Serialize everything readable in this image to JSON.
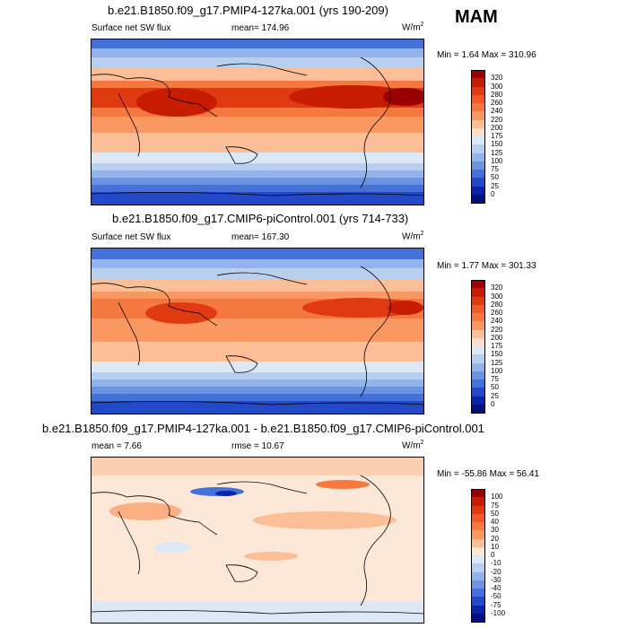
{
  "season": "MAM",
  "panels": [
    {
      "title": "b.e21.B1850.f09_g17.PMIP4-127ka.001 (yrs 190-209)",
      "left_label": "Surface net SW flux",
      "center_label": "mean= 174.96",
      "units_base": "W/m",
      "units_exp": "2",
      "minmax": "Min =  1.64 Max = 310.96",
      "colorbar_labels": [
        "320",
        "300",
        "280",
        "260",
        "240",
        "220",
        "200",
        "175",
        "150",
        "125",
        "100",
        "75",
        "50",
        "25",
        "0"
      ],
      "colors": [
        "#9a0000",
        "#c81c00",
        "#e03a10",
        "#ef5a28",
        "#f5793f",
        "#f99961",
        "#fbbe96",
        "#fde0c8",
        "#dce8f5",
        "#b8d0f0",
        "#92b4ea",
        "#6a93e2",
        "#4470d9",
        "#2449c8",
        "#0b22aa",
        "#00107c"
      ]
    },
    {
      "title": "b.e21.B1850.f09_g17.CMIP6-piControl.001 (yrs 714-733)",
      "left_label": "Surface net SW flux",
      "center_label": "mean= 167.30",
      "units_base": "W/m",
      "units_exp": "2",
      "minmax": "Min =  1.77 Max = 301.33",
      "colorbar_labels": [
        "320",
        "300",
        "280",
        "260",
        "240",
        "220",
        "200",
        "175",
        "150",
        "125",
        "100",
        "75",
        "50",
        "25",
        "0"
      ],
      "colors": [
        "#9a0000",
        "#c81c00",
        "#e03a10",
        "#ef5a28",
        "#f5793f",
        "#f99961",
        "#fbbe96",
        "#fde0c8",
        "#dce8f5",
        "#b8d0f0",
        "#92b4ea",
        "#6a93e2",
        "#4470d9",
        "#2449c8",
        "#0b22aa",
        "#00107c"
      ]
    },
    {
      "title": "b.e21.B1850.f09_g17.PMIP4-127ka.001 - b.e21.B1850.f09_g17.CMIP6-piControl.001",
      "left_label": "mean =  7.66",
      "center_label": "rmse =  10.67",
      "units_base": "W/m",
      "units_exp": "2",
      "minmax": "Min = -55.86 Max =  56.41",
      "colorbar_labels": [
        "100",
        "75",
        "50",
        "40",
        "30",
        "20",
        "10",
        "0",
        "-10",
        "-20",
        "-30",
        "-40",
        "-50",
        "-75",
        "-100"
      ],
      "colors": [
        "#9a0000",
        "#c81c00",
        "#e03a10",
        "#ef5a28",
        "#f5793f",
        "#f99961",
        "#fbbe96",
        "#fde8d8",
        "#dde8f7",
        "#b8d0f0",
        "#92b4ea",
        "#6a93e2",
        "#4470d9",
        "#2449c8",
        "#0b22aa",
        "#00107c"
      ]
    }
  ]
}
